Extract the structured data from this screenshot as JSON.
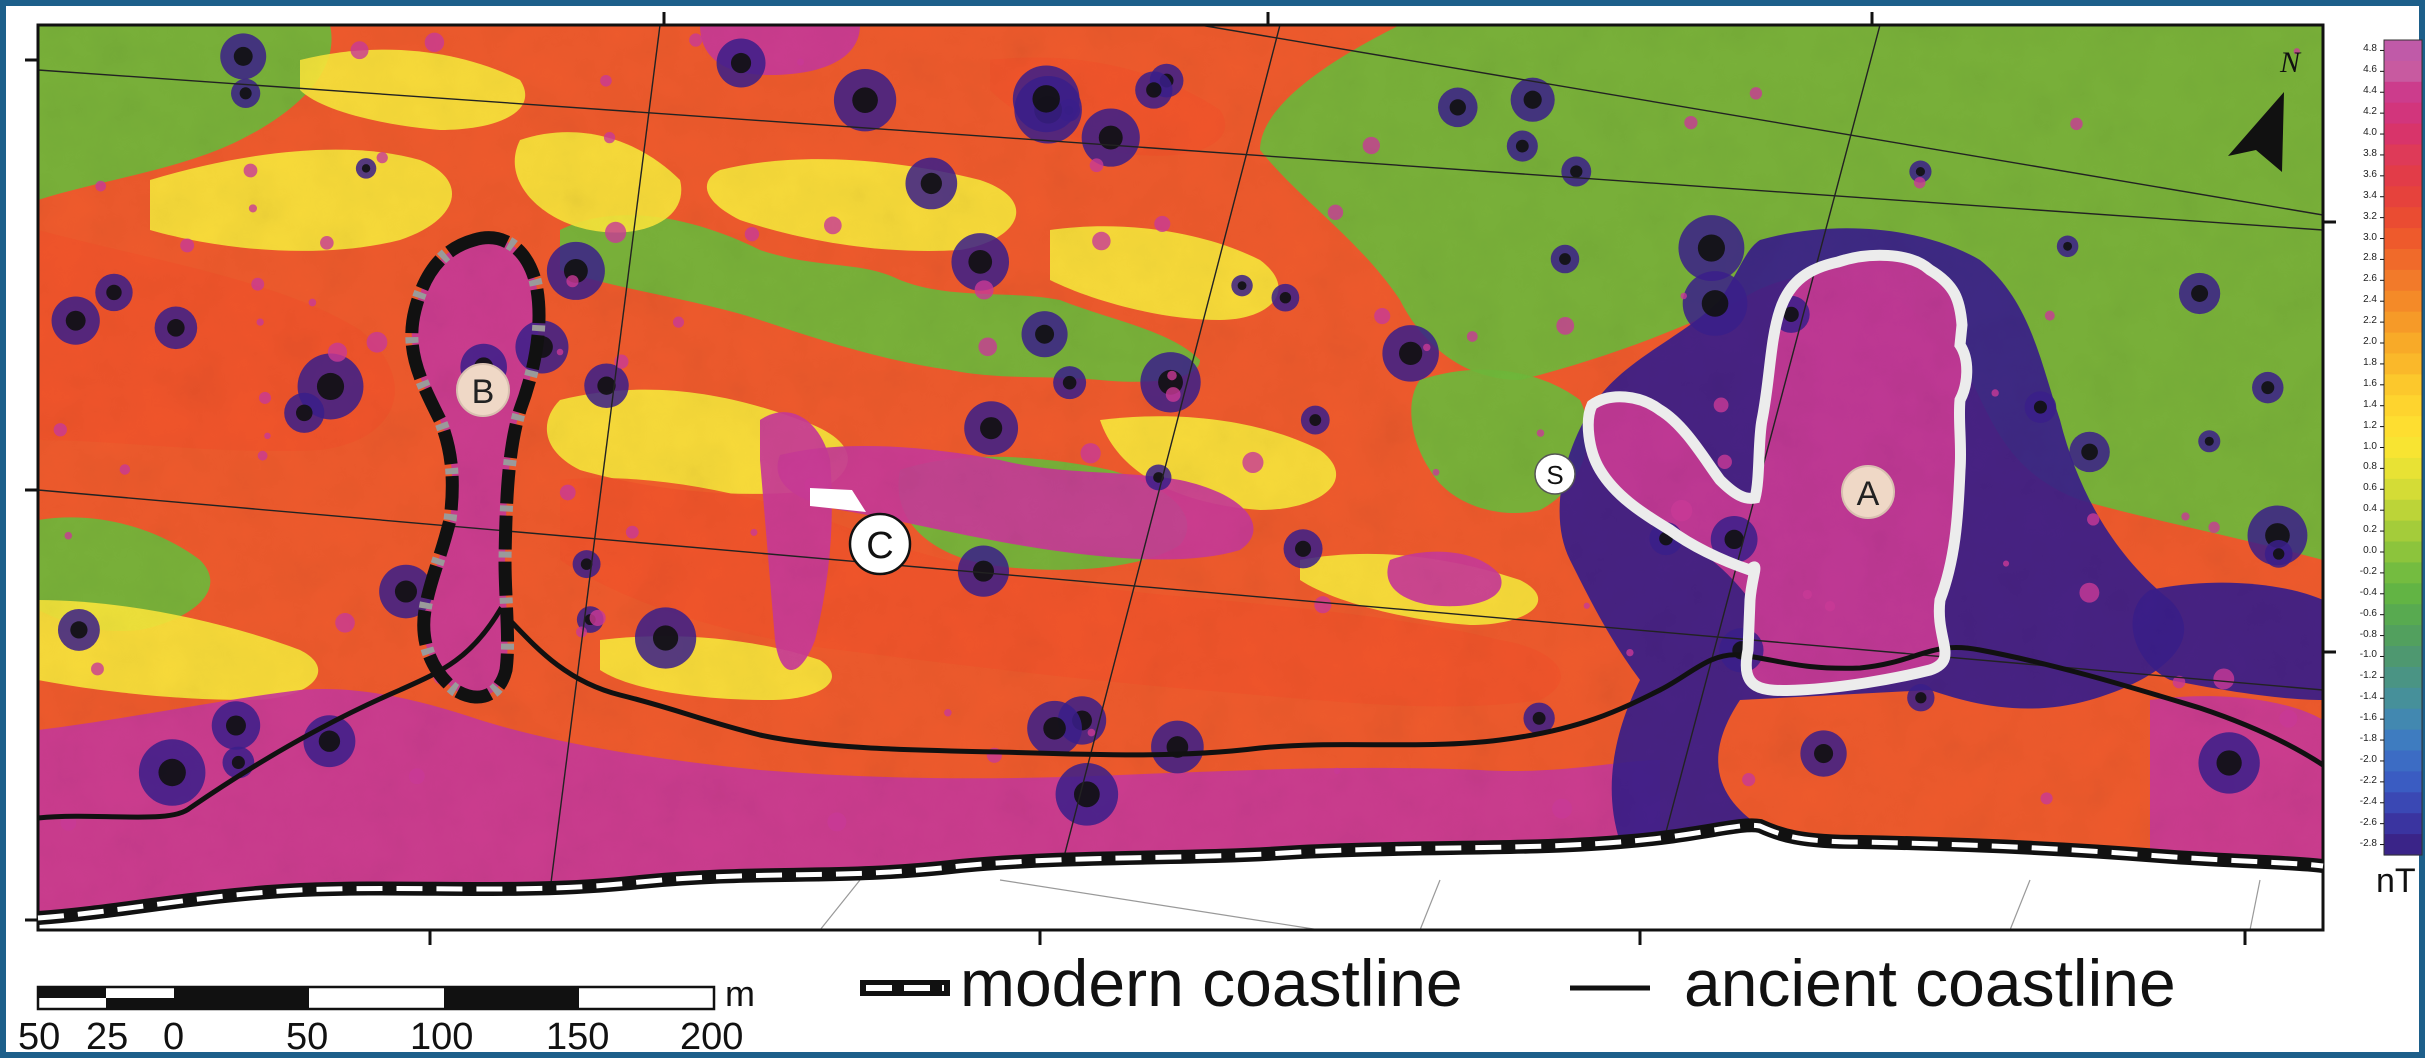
{
  "map": {
    "site_labels": [
      {
        "id": "A",
        "text": "A"
      },
      {
        "id": "B",
        "text": "B"
      },
      {
        "id": "C",
        "text": "C"
      },
      {
        "id": "S",
        "text": "S"
      }
    ],
    "north_label": "N",
    "colors": {
      "frame": "#1d5f8a",
      "high": "#c83a96",
      "orange": "#f0542a",
      "yellow": "#f8e43a",
      "green": "#70b83a",
      "low": "#3a1e8a",
      "site_outline": "#e8e8e8"
    }
  },
  "colorbar": {
    "ticks": [
      "4.8",
      "4.6",
      "4.4",
      "4.2",
      "4.0",
      "3.8",
      "3.6",
      "3.4",
      "3.2",
      "3.0",
      "2.8",
      "2.6",
      "2.4",
      "2.2",
      "2.0",
      "1.8",
      "1.6",
      "1.4",
      "1.2",
      "1.0",
      "0.8",
      "0.6",
      "0.4",
      "0.2",
      "0.0",
      "-0.2",
      "-0.4",
      "-0.6",
      "-0.8",
      "-1.0",
      "-1.2",
      "-1.4",
      "-1.6",
      "-1.8",
      "-2.0",
      "-2.2",
      "-2.4",
      "-2.6",
      "-2.8"
    ],
    "unit": "nT",
    "colors": [
      "#c05aa8",
      "#c85aa0",
      "#cc3c8c",
      "#d2357c",
      "#d8346a",
      "#de3a58",
      "#e23c48",
      "#e6423c",
      "#ea4c32",
      "#ee5a2c",
      "#f06a2a",
      "#f27a2a",
      "#f48a28",
      "#f69a28",
      "#f8aa28",
      "#fab82a",
      "#fcc82c",
      "#fed42e",
      "#fede30",
      "#f8e432",
      "#e8e234",
      "#d4dc36",
      "#bcd438",
      "#a4cc3a",
      "#8cc43c",
      "#74bc40",
      "#62b444",
      "#58aa50",
      "#52a05e",
      "#4e9870",
      "#4a9484",
      "#46909a",
      "#4288b0",
      "#3e7cc0",
      "#3c6cc4",
      "#3a5cc2",
      "#3a48b4",
      "#3a34a0",
      "#3a2488"
    ]
  },
  "scale_bar": {
    "labels": [
      "50",
      "25",
      "0",
      "50",
      "100",
      "150",
      "200"
    ],
    "unit": "m"
  },
  "legend": {
    "modern_coastline_label": "modern coastline",
    "ancient_coastline_label": "ancient coastline"
  }
}
